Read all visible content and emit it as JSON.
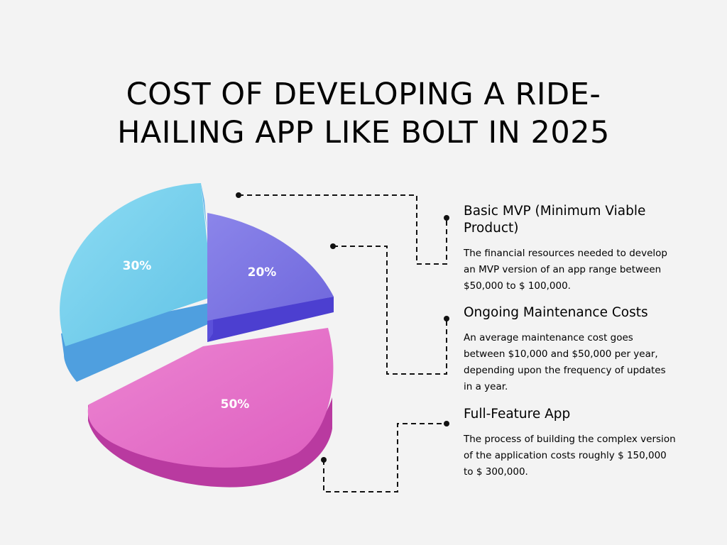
{
  "page": {
    "title_line1": "COST OF DEVELOPING A RIDE-",
    "title_line2": "HAILING APP LIKE BOLT IN 2025"
  },
  "colors": {
    "background": "#f3f3f3",
    "cyan_slice": "#74cdea",
    "purple_slice": "#7a72e2",
    "pink_slice": "#e569c6",
    "connector": "#111111"
  },
  "items": [
    {
      "heading": "Basic MVP (Minimum Viable Product)",
      "text": "The financial resources needed to develop an MVP version of an app range between $50,000 to $ 100,000."
    },
    {
      "heading": "Ongoing Maintenance Costs",
      "text": "An average maintenance cost goes between $10,000 and $50,000 per year, depending upon the frequency of updates in a year."
    },
    {
      "heading": "Full-Feature App",
      "text": "The process of building the complex version of the application costs roughly $ 150,000 to $ 300,000."
    }
  ],
  "chart_data": {
    "type": "pie",
    "style": "3d-exploded",
    "slices": [
      {
        "label": "30%",
        "value": 30,
        "color": "#74cdea"
      },
      {
        "label": "20%",
        "value": 20,
        "color": "#7a72e2"
      },
      {
        "label": "50%",
        "value": 50,
        "color": "#e569c6"
      }
    ]
  }
}
